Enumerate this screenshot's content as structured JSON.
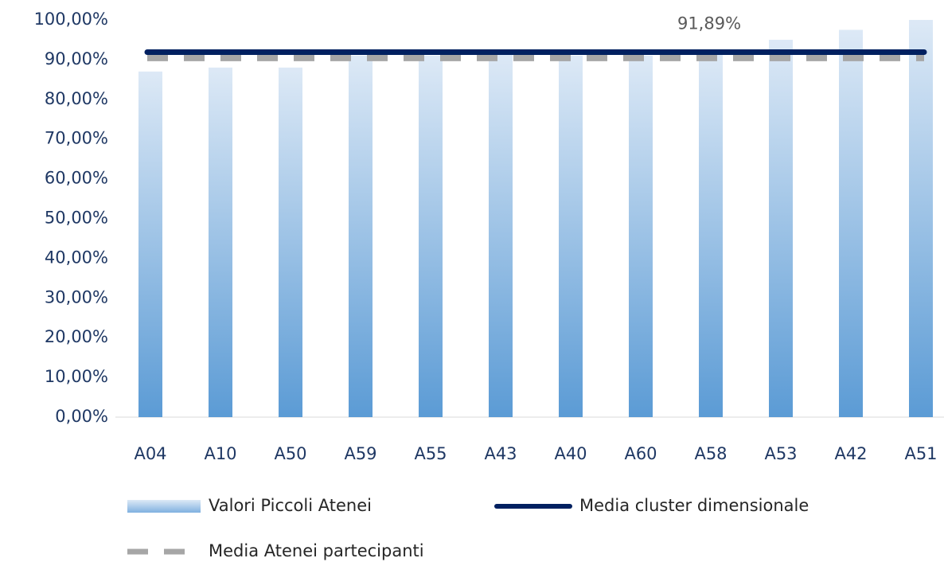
{
  "chart_data": {
    "type": "bar",
    "categories": [
      "A04",
      "A10",
      "A50",
      "A59",
      "A55",
      "A43",
      "A40",
      "A60",
      "A58",
      "A53",
      "A42",
      "A51"
    ],
    "series": [
      {
        "name": "Valori Piccoli Atenei",
        "type": "bar",
        "color": "#5b9bd5",
        "values": [
          87,
          88,
          88,
          91,
          91,
          91.5,
          91,
          91,
          92,
          95,
          97.5,
          100
        ]
      },
      {
        "name": "Media cluster dimensionale",
        "type": "line",
        "color": "#002060",
        "values": [
          91.89,
          91.89,
          91.89,
          91.89,
          91.89,
          91.89,
          91.89,
          91.89,
          91.89,
          91.89,
          91.89,
          91.89
        ],
        "value_labels": [
          null,
          null,
          null,
          null,
          null,
          null,
          null,
          null,
          "91,89%",
          null,
          null,
          null
        ]
      },
      {
        "name": "Media Atenei partecipanti",
        "type": "dashed-line",
        "color": "#a6a6a6",
        "values": [
          90.4,
          90.4,
          90.4,
          90.4,
          90.4,
          90.4,
          90.4,
          90.4,
          90.4,
          90.4,
          90.4,
          90.4
        ]
      }
    ],
    "ylim": [
      0,
      100
    ],
    "yticks": [
      {
        "value": 0,
        "label": "0,00%"
      },
      {
        "value": 10,
        "label": "10,00%"
      },
      {
        "value": 20,
        "label": "20,00%"
      },
      {
        "value": 30,
        "label": "30,00%"
      },
      {
        "value": 40,
        "label": "40,00%"
      },
      {
        "value": 50,
        "label": "50,00%"
      },
      {
        "value": 60,
        "label": "60,00%"
      },
      {
        "value": 70,
        "label": "70,00%"
      },
      {
        "value": 80,
        "label": "80,00%"
      },
      {
        "value": 90,
        "label": "90,00%"
      },
      {
        "value": 100,
        "label": "100,00%"
      }
    ],
    "grid": false
  }
}
